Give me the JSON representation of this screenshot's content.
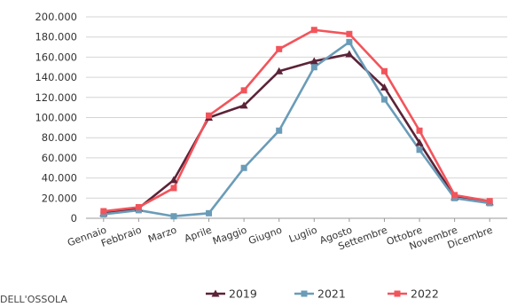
{
  "chart_data": {
    "type": "line",
    "title": "",
    "xlabel": "",
    "ylabel": "",
    "categories": [
      "Gennaio",
      "Febbraio",
      "Marzo",
      "Aprile",
      "Maggio",
      "Giugno",
      "Luglio",
      "Agosto",
      "Settembre",
      "Ottobre",
      "Novembre",
      "Dicembre"
    ],
    "yticks": [
      "0",
      "20.000",
      "40.000",
      "60.000",
      "80.000",
      "100.000",
      "120.000",
      "140.000",
      "160.000",
      "180.000",
      "200.000"
    ],
    "ylim": [
      0,
      200000
    ],
    "grid": true,
    "legend_position": "bottom",
    "series": [
      {
        "name": "2019",
        "color": "#5b2338",
        "marker": "triangle",
        "values": [
          5000,
          10000,
          38000,
          100000,
          112000,
          146000,
          156000,
          163000,
          130000,
          75000,
          21000,
          16000
        ]
      },
      {
        "name": "2021",
        "color": "#6a9cb8",
        "marker": "square",
        "values": [
          4000,
          8000,
          2000,
          5000,
          50000,
          87000,
          150000,
          175000,
          118000,
          68000,
          20000,
          15000
        ]
      },
      {
        "name": "2022",
        "color": "#f2545b",
        "marker": "square",
        "values": [
          7000,
          11000,
          30000,
          102000,
          127000,
          168000,
          187000,
          183000,
          146000,
          87000,
          23000,
          17000
        ]
      }
    ]
  },
  "footer_text": "DELL'OSSOLA"
}
